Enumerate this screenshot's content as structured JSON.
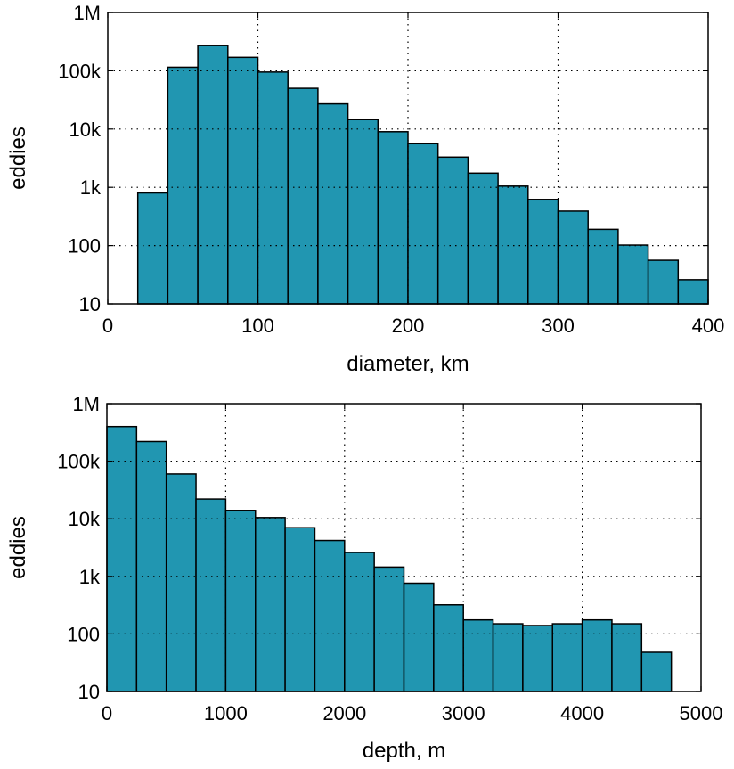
{
  "colors": {
    "bar_fill": "#2196b1",
    "bar_edge": "#000000",
    "background": "#ffffff"
  },
  "chart_data": [
    {
      "type": "bar",
      "subtype": "histogram",
      "xlabel": "diameter, km",
      "ylabel": "eddies",
      "xlim": [
        0,
        400
      ],
      "yscale": "log",
      "ylim": [
        10,
        1000000
      ],
      "grid": true,
      "xticks": [
        0,
        100,
        200,
        300,
        400
      ],
      "xtick_labels": [
        "0",
        "100",
        "200",
        "300",
        "400"
      ],
      "yticks": [
        10,
        100,
        1000,
        10000,
        100000,
        1000000
      ],
      "ytick_labels": [
        "10",
        "100",
        "1k",
        "10k",
        "100k",
        "1M"
      ],
      "bin_edges": [
        20,
        40,
        60,
        80,
        100,
        120,
        140,
        160,
        180,
        200,
        220,
        240,
        260,
        280,
        300,
        320,
        340,
        360,
        380,
        400
      ],
      "values": [
        800,
        115000,
        270000,
        170000,
        95000,
        50000,
        27000,
        14500,
        9000,
        5600,
        3300,
        1750,
        1050,
        620,
        390,
        190,
        102,
        56,
        26
      ]
    },
    {
      "type": "bar",
      "subtype": "histogram",
      "xlabel": "depth, m",
      "ylabel": "eddies",
      "xlim": [
        0,
        5000
      ],
      "yscale": "log",
      "ylim": [
        10,
        1000000
      ],
      "grid": true,
      "xticks": [
        0,
        1000,
        2000,
        3000,
        4000,
        5000
      ],
      "xtick_labels": [
        "0",
        "1000",
        "2000",
        "3000",
        "4000",
        "5000"
      ],
      "yticks": [
        10,
        100,
        1000,
        10000,
        100000,
        1000000
      ],
      "ytick_labels": [
        "10",
        "100",
        "1k",
        "10k",
        "100k",
        "1M"
      ],
      "bin_edges": [
        0,
        250,
        500,
        750,
        1000,
        1250,
        1500,
        1750,
        2000,
        2250,
        2500,
        2750,
        3000,
        3250,
        3500,
        3750,
        4000,
        4250,
        4500,
        4750
      ],
      "values": [
        400000,
        220000,
        60000,
        22000,
        14000,
        10500,
        7000,
        4200,
        2600,
        1450,
        760,
        320,
        175,
        150,
        140,
        150,
        175,
        150,
        48
      ]
    }
  ]
}
